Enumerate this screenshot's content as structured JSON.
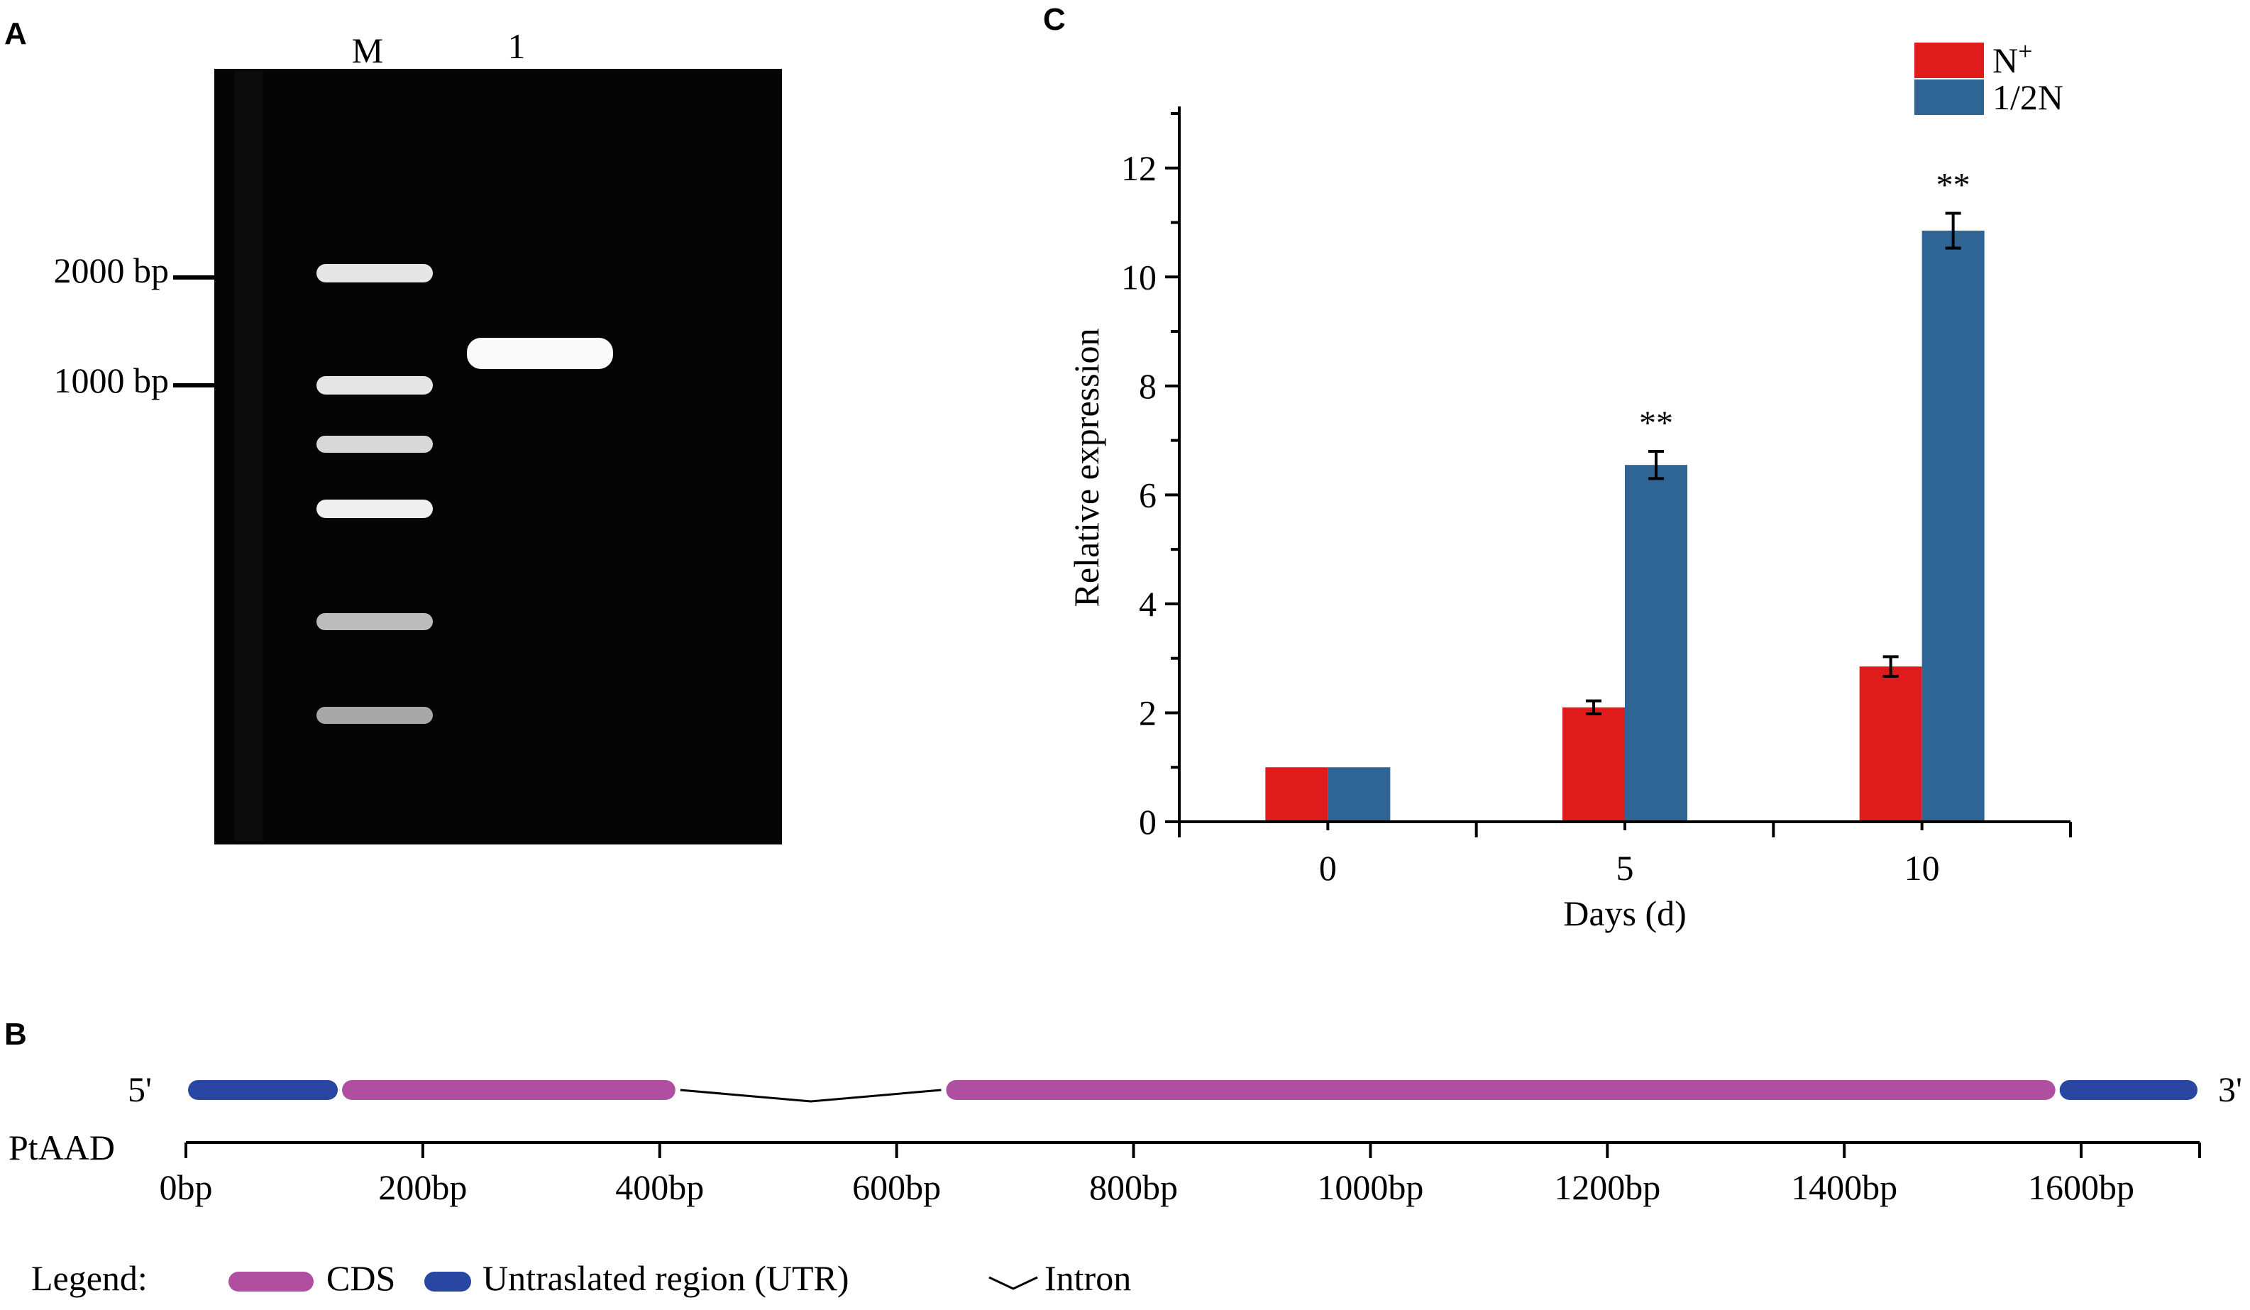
{
  "panels": {
    "a_letter": "A",
    "b_letter": "B",
    "c_letter": "C"
  },
  "gel": {
    "lane_marker_label": "M",
    "lane_sample_label": "1",
    "size_labels": [
      "2000 bp",
      "1000 bp"
    ]
  },
  "gene_structure": {
    "five_prime": "5'",
    "three_prime": "3'",
    "gene_name": "PtAAD",
    "scale_labels": [
      "0bp",
      "200bp",
      "400bp",
      "600bp",
      "800bp",
      "1000bp",
      "1200bp",
      "1400bp",
      "1600bp"
    ],
    "scale_values": [
      0,
      200,
      400,
      600,
      800,
      1000,
      1200,
      1400,
      1600
    ],
    "features": [
      {
        "type": "UTR",
        "start": 0,
        "end": 130
      },
      {
        "type": "CDS",
        "start": 130,
        "end": 415
      },
      {
        "type": "Intron",
        "start": 415,
        "end": 640
      },
      {
        "type": "CDS",
        "start": 640,
        "end": 1580
      },
      {
        "type": "UTR",
        "start": 1580,
        "end": 1700
      }
    ],
    "colors": {
      "CDS": "#b04fa0",
      "UTR": "#2a46a3",
      "Intron": "#000000"
    },
    "legend": {
      "title": "Legend:",
      "cds_label": "CDS",
      "utr_label": "Untraslated region (UTR)",
      "intron_label": "Intron"
    }
  },
  "chart_data": {
    "type": "bar",
    "categories": [
      "0",
      "5",
      "10"
    ],
    "xlabel": "Days (d)",
    "ylabel": "Relative expression",
    "ylim": [
      0,
      13
    ],
    "yticks": [
      0,
      2,
      4,
      6,
      8,
      10,
      12
    ],
    "legend_position": "top-right",
    "series": [
      {
        "name": "N+",
        "name_main": "N",
        "name_sup": "+",
        "color": "#e01b1b",
        "values": [
          1.0,
          2.1,
          2.85
        ],
        "errors": [
          0,
          0.12,
          0.18
        ]
      },
      {
        "name": "1/2N",
        "color": "#2e6595",
        "values": [
          1.0,
          6.55,
          10.85
        ],
        "errors": [
          0,
          0.25,
          0.32
        ]
      }
    ],
    "annotations": [
      {
        "category": "5",
        "series": "1/2N",
        "text": "**"
      },
      {
        "category": "10",
        "series": "1/2N",
        "text": "**"
      }
    ]
  }
}
